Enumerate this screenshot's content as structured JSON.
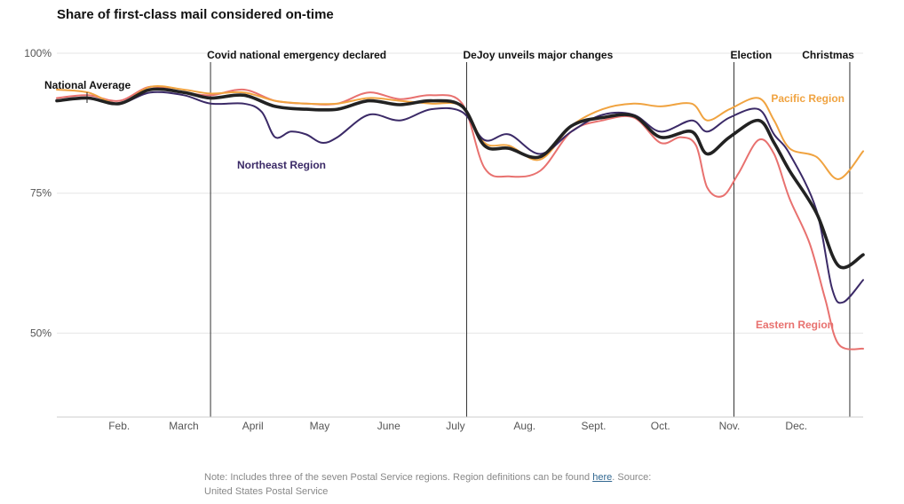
{
  "chart_data": {
    "type": "line",
    "title": "Share of first-class mail considered on-time",
    "x_range": [
      "2020-01-04",
      "2020-12-31"
    ],
    "ylim": [
      35,
      100
    ],
    "y_ticks": [
      {
        "value": 100,
        "label": "100%"
      },
      {
        "value": 75,
        "label": "75%"
      },
      {
        "value": 50,
        "label": "50%"
      }
    ],
    "x_ticks": [
      {
        "date": "2020-02-01",
        "label": "Feb."
      },
      {
        "date": "2020-03-01",
        "label": "March"
      },
      {
        "date": "2020-04-01",
        "label": "April"
      },
      {
        "date": "2020-05-01",
        "label": "May"
      },
      {
        "date": "2020-06-01",
        "label": "June"
      },
      {
        "date": "2020-07-01",
        "label": "July"
      },
      {
        "date": "2020-08-01",
        "label": "Aug."
      },
      {
        "date": "2020-09-01",
        "label": "Sept."
      },
      {
        "date": "2020-10-01",
        "label": "Oct."
      },
      {
        "date": "2020-11-01",
        "label": "Nov."
      },
      {
        "date": "2020-12-01",
        "label": "Dec."
      }
    ],
    "events": [
      {
        "date": "2020-03-13",
        "label": "Covid national emergency declared"
      },
      {
        "date": "2020-07-06",
        "label": "DeJoy unveils major changes"
      },
      {
        "date": "2020-11-03",
        "label": "Election"
      },
      {
        "date": "2020-12-25",
        "label": "Christmas"
      }
    ],
    "series": [
      {
        "name": "Eastern Region",
        "color": "#e8716f",
        "points": [
          [
            "2020-01-04",
            92.0
          ],
          [
            "2020-01-18",
            92.5
          ],
          [
            "2020-02-01",
            91.5
          ],
          [
            "2020-02-15",
            94.0
          ],
          [
            "2020-03-01",
            93.0
          ],
          [
            "2020-03-13",
            92.5
          ],
          [
            "2020-03-28",
            93.5
          ],
          [
            "2020-04-11",
            91.5
          ],
          [
            "2020-04-25",
            91.0
          ],
          [
            "2020-05-09",
            91.0
          ],
          [
            "2020-05-23",
            93.0
          ],
          [
            "2020-06-06",
            91.8
          ],
          [
            "2020-06-20",
            92.5
          ],
          [
            "2020-07-04",
            91.0
          ],
          [
            "2020-07-14",
            79.5
          ],
          [
            "2020-07-25",
            78.0
          ],
          [
            "2020-08-08",
            79.0
          ],
          [
            "2020-08-22",
            86.0
          ],
          [
            "2020-09-05",
            88.0
          ],
          [
            "2020-09-19",
            88.5
          ],
          [
            "2020-10-01",
            84.0
          ],
          [
            "2020-10-10",
            85.0
          ],
          [
            "2020-10-17",
            83.5
          ],
          [
            "2020-10-22",
            76.0
          ],
          [
            "2020-10-29",
            74.5
          ],
          [
            "2020-11-05",
            78.5
          ],
          [
            "2020-11-14",
            84.5
          ],
          [
            "2020-11-21",
            82.0
          ],
          [
            "2020-11-28",
            74.0
          ],
          [
            "2020-12-07",
            66.0
          ],
          [
            "2020-12-14",
            56.0
          ],
          [
            "2020-12-20",
            48.0
          ],
          [
            "2020-12-31",
            47.2
          ]
        ]
      },
      {
        "name": "Pacific Region",
        "color": "#f0a340",
        "points": [
          [
            "2020-01-04",
            93.5
          ],
          [
            "2020-01-18",
            93.0
          ],
          [
            "2020-02-01",
            91.0
          ],
          [
            "2020-02-15",
            94.0
          ],
          [
            "2020-03-01",
            93.5
          ],
          [
            "2020-03-13",
            92.8
          ],
          [
            "2020-03-28",
            93.0
          ],
          [
            "2020-04-11",
            91.5
          ],
          [
            "2020-04-25",
            91.0
          ],
          [
            "2020-05-09",
            91.0
          ],
          [
            "2020-05-23",
            92.0
          ],
          [
            "2020-06-06",
            91.5
          ],
          [
            "2020-06-20",
            91.0
          ],
          [
            "2020-07-04",
            90.5
          ],
          [
            "2020-07-14",
            84.0
          ],
          [
            "2020-07-25",
            83.5
          ],
          [
            "2020-08-08",
            81.0
          ],
          [
            "2020-08-22",
            87.0
          ],
          [
            "2020-09-05",
            90.0
          ],
          [
            "2020-09-19",
            91.0
          ],
          [
            "2020-10-01",
            90.5
          ],
          [
            "2020-10-15",
            91.0
          ],
          [
            "2020-10-22",
            88.0
          ],
          [
            "2020-11-01",
            90.0
          ],
          [
            "2020-11-14",
            92.0
          ],
          [
            "2020-11-21",
            88.0
          ],
          [
            "2020-11-28",
            83.0
          ],
          [
            "2020-12-10",
            81.5
          ],
          [
            "2020-12-20",
            77.5
          ],
          [
            "2020-12-31",
            82.5
          ]
        ]
      },
      {
        "name": "Northeast Region",
        "color": "#3b2a67",
        "points": [
          [
            "2020-01-04",
            91.5
          ],
          [
            "2020-01-18",
            92.0
          ],
          [
            "2020-02-01",
            91.0
          ],
          [
            "2020-02-15",
            93.0
          ],
          [
            "2020-03-01",
            92.5
          ],
          [
            "2020-03-13",
            91.0
          ],
          [
            "2020-03-28",
            91.0
          ],
          [
            "2020-04-05",
            89.5
          ],
          [
            "2020-04-11",
            85.0
          ],
          [
            "2020-04-18",
            86.0
          ],
          [
            "2020-04-25",
            85.5
          ],
          [
            "2020-05-02",
            84.0
          ],
          [
            "2020-05-09",
            85.0
          ],
          [
            "2020-05-23",
            89.0
          ],
          [
            "2020-06-06",
            88.0
          ],
          [
            "2020-06-20",
            90.0
          ],
          [
            "2020-07-04",
            89.5
          ],
          [
            "2020-07-14",
            84.5
          ],
          [
            "2020-07-25",
            85.5
          ],
          [
            "2020-08-08",
            82.0
          ],
          [
            "2020-08-22",
            86.0
          ],
          [
            "2020-09-05",
            89.0
          ],
          [
            "2020-09-19",
            89.0
          ],
          [
            "2020-10-01",
            86.0
          ],
          [
            "2020-10-15",
            88.0
          ],
          [
            "2020-10-22",
            86.0
          ],
          [
            "2020-11-01",
            88.5
          ],
          [
            "2020-11-14",
            90.0
          ],
          [
            "2020-11-21",
            85.5
          ],
          [
            "2020-11-28",
            82.0
          ],
          [
            "2020-12-10",
            72.0
          ],
          [
            "2020-12-17",
            58.0
          ],
          [
            "2020-12-22",
            55.5
          ],
          [
            "2020-12-31",
            59.5
          ]
        ]
      },
      {
        "name": "National Average",
        "color": "#222222",
        "points": [
          [
            "2020-01-04",
            91.5
          ],
          [
            "2020-01-18",
            92.0
          ],
          [
            "2020-02-01",
            91.0
          ],
          [
            "2020-02-15",
            93.5
          ],
          [
            "2020-03-01",
            93.0
          ],
          [
            "2020-03-13",
            92.0
          ],
          [
            "2020-03-28",
            92.5
          ],
          [
            "2020-04-11",
            90.5
          ],
          [
            "2020-04-25",
            90.0
          ],
          [
            "2020-05-09",
            90.0
          ],
          [
            "2020-05-23",
            91.5
          ],
          [
            "2020-06-06",
            90.8
          ],
          [
            "2020-06-20",
            91.5
          ],
          [
            "2020-07-04",
            90.5
          ],
          [
            "2020-07-14",
            83.5
          ],
          [
            "2020-07-25",
            83.0
          ],
          [
            "2020-08-08",
            81.5
          ],
          [
            "2020-08-22",
            87.0
          ],
          [
            "2020-09-05",
            88.5
          ],
          [
            "2020-09-19",
            88.8
          ],
          [
            "2020-10-01",
            85.0
          ],
          [
            "2020-10-15",
            86.0
          ],
          [
            "2020-10-22",
            82.0
          ],
          [
            "2020-11-01",
            85.0
          ],
          [
            "2020-11-14",
            88.0
          ],
          [
            "2020-11-21",
            84.0
          ],
          [
            "2020-11-28",
            79.0
          ],
          [
            "2020-12-10",
            71.5
          ],
          [
            "2020-12-20",
            62.0
          ],
          [
            "2020-12-31",
            64.0
          ]
        ]
      }
    ],
    "labels": [
      {
        "series": "National Average",
        "text": "National Average"
      },
      {
        "series": "Pacific Region",
        "text": "Pacific Region"
      },
      {
        "series": "Northeast Region",
        "text": "Northeast Region"
      },
      {
        "series": "Eastern Region",
        "text": "Eastern Region"
      }
    ],
    "note": {
      "text_before": "Note: Includes three of the seven Postal Service regions. Region definitions can be found ",
      "link": "here",
      "text_after": ". Source: United States Postal Service"
    }
  }
}
